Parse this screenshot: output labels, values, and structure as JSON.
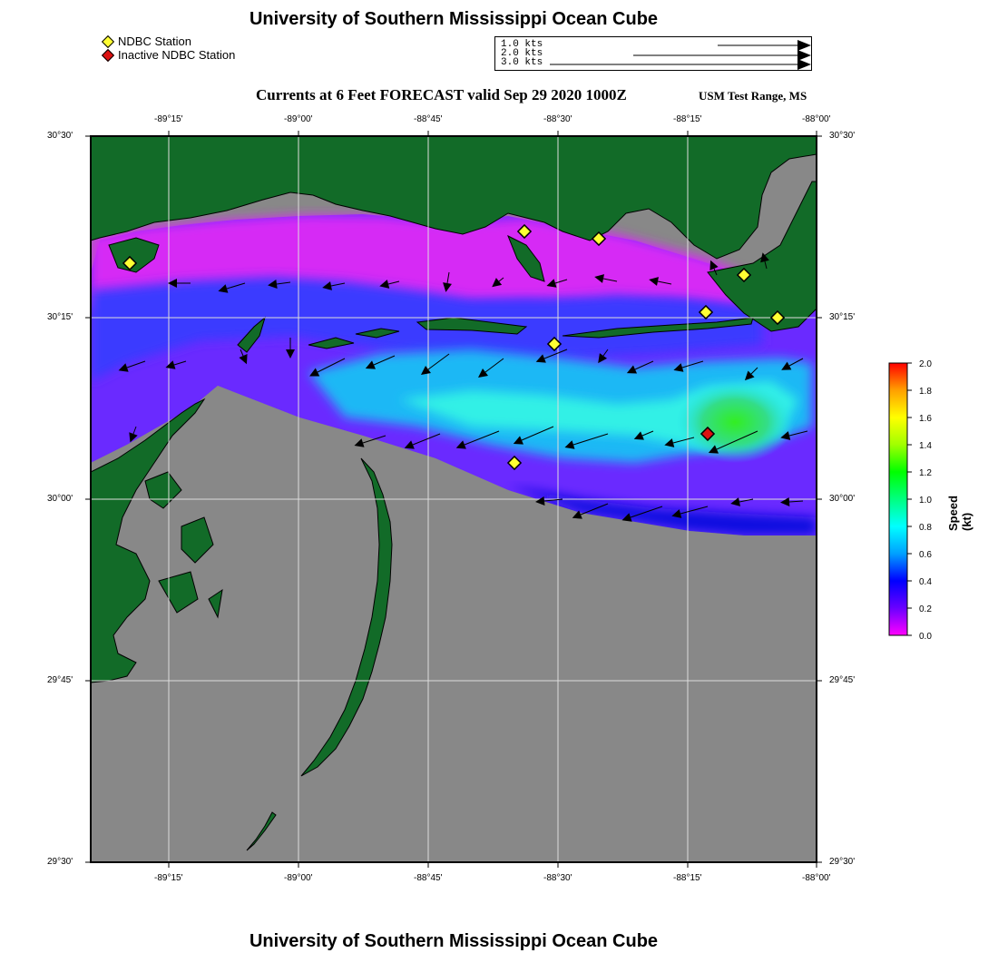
{
  "header": {
    "title": "University of Southern Mississippi Ocean Cube",
    "footer_title": "University of Southern Mississippi Ocean Cube",
    "subtitle": "Currents at 6 Feet FORECAST valid Sep 29 2020 1000Z",
    "range_name": "USM Test Range, MS"
  },
  "legend": {
    "active": {
      "label": "NDBC Station",
      "color": "#ffff33"
    },
    "inactive": {
      "label": "Inactive NDBC Station",
      "color": "#dd1111"
    }
  },
  "vector_scale": {
    "entries": [
      {
        "label": "1.0 kts",
        "value": 1.0
      },
      {
        "label": "2.0 kts",
        "value": 2.0
      },
      {
        "label": "3.0 kts",
        "value": 3.0
      }
    ]
  },
  "axes": {
    "x_ticks": [
      "-89°15'",
      "-89°00'",
      "-88°45'",
      "-88°30'",
      "-88°15'",
      "-88°00'"
    ],
    "y_ticks": [
      "30°30'",
      "30°15'",
      "30°00'",
      "29°45'",
      "29°30'"
    ]
  },
  "colorbar": {
    "title": "Speed (kt)",
    "ticks": [
      "2.0",
      "1.8",
      "1.6",
      "1.4",
      "1.2",
      "1.0",
      "0.8",
      "0.6",
      "0.4",
      "0.2",
      "0.0"
    ],
    "colors": [
      "#ff00ff",
      "#6a00ff",
      "#0000ff",
      "#00a0ff",
      "#00ffff",
      "#00ff80",
      "#00ff00",
      "#a0ff00",
      "#ffff00",
      "#ffa000",
      "#ff0000"
    ]
  },
  "colors": {
    "land": "#126b28",
    "no_data": "#888888",
    "grid": "#dddddd"
  }
}
